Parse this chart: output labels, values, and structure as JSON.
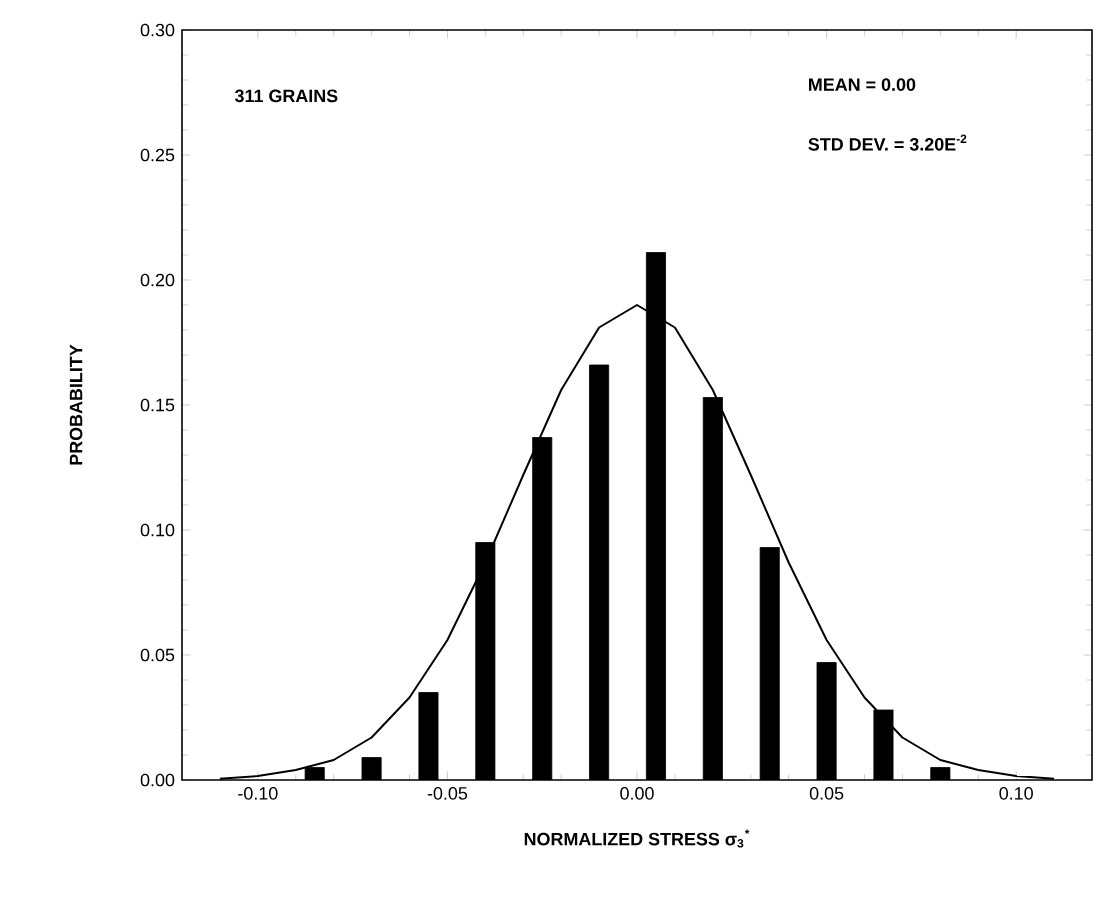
{
  "chart_data": {
    "type": "bar",
    "xlabel": "NORMALIZED STRESS σ$_{3}$$^{*}$",
    "ylabel": "PROBABILITY",
    "annotations": [
      "311 GRAINS",
      "MEAN = 0.00",
      "STD DEV. = 3.20E$^{-2}$"
    ],
    "x": [
      -0.085,
      -0.07,
      -0.055,
      -0.04,
      -0.025,
      -0.01,
      0.005,
      0.02,
      0.035,
      0.05,
      0.065,
      0.08
    ],
    "series": [
      {
        "color": "#000000",
        "values": [
          0.005,
          0.009,
          0.035,
          0.095,
          0.137,
          0.166,
          0.211,
          0.153,
          0.093,
          0.047,
          0.028,
          0.005
        ]
      },
      {
        "type": "line",
        "color": "#000000",
        "x": [
          -0.11,
          -0.1,
          -0.09,
          -0.08,
          -0.07,
          -0.06,
          -0.05,
          -0.04,
          -0.03,
          -0.02,
          -0.01,
          0.0,
          0.01,
          0.02,
          0.03,
          0.04,
          0.05,
          0.06,
          0.07,
          0.08,
          0.09,
          0.1,
          0.11
        ],
        "values": [
          0.0005,
          0.0016,
          0.004,
          0.008,
          0.017,
          0.033,
          0.056,
          0.087,
          0.122,
          0.156,
          0.181,
          0.19,
          0.181,
          0.156,
          0.122,
          0.087,
          0.056,
          0.033,
          0.017,
          0.008,
          0.004,
          0.0016,
          0.0005
        ]
      }
    ],
    "xlim": [
      -0.12,
      0.12
    ],
    "ylim": [
      0,
      0.3
    ],
    "xticks": [
      {
        "value": -0.1,
        "label": "-0.10"
      },
      {
        "value": -0.05,
        "label": "-0.05"
      },
      {
        "value": 0,
        "label": "0.00"
      },
      {
        "value": 0.05,
        "label": "0.05"
      },
      {
        "value": 0.1,
        "label": "0.10"
      }
    ],
    "yticks": [
      {
        "value": 0,
        "label": "0.00"
      },
      {
        "value": 0.05,
        "label": "0.05"
      },
      {
        "value": 0.1,
        "label": "0.10"
      },
      {
        "value": 0.15,
        "label": "0.15"
      },
      {
        "value": 0.2,
        "label": "0.20"
      },
      {
        "value": 0.25,
        "label": "0.25"
      },
      {
        "value": 0.3,
        "label": "0.30"
      }
    ],
    "grid": false,
    "legend": false,
    "marker": "none",
    "line_style": "solid"
  }
}
